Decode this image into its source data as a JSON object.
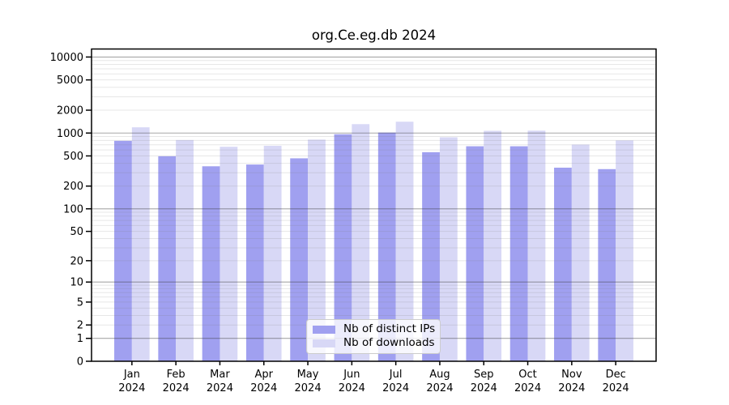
{
  "chart_data": {
    "type": "bar",
    "title": "org.Ce.eg.db 2024",
    "categories": [
      "Jan 2024",
      "Feb 2024",
      "Mar 2024",
      "Apr 2024",
      "May 2024",
      "Jun 2024",
      "Jul 2024",
      "Aug 2024",
      "Sep 2024",
      "Oct 2024",
      "Nov 2024",
      "Dec 2024"
    ],
    "category_line1": [
      "Jan",
      "Feb",
      "Mar",
      "Apr",
      "May",
      "Jun",
      "Jul",
      "Aug",
      "Sep",
      "Oct",
      "Nov",
      "Dec"
    ],
    "category_line2": "2024",
    "series": [
      {
        "name": "Nb of distinct IPs",
        "color": "#a0a0f0",
        "values": [
          790,
          495,
          365,
          385,
          465,
          965,
          1015,
          560,
          670,
          670,
          350,
          335
        ]
      },
      {
        "name": "Nb of downloads",
        "color": "#d8d8f6",
        "values": [
          1190,
          810,
          660,
          680,
          820,
          1310,
          1410,
          880,
          1070,
          1075,
          705,
          800
        ]
      }
    ],
    "xlabel": "",
    "ylabel": "",
    "yscale": "log10(value+1)",
    "y_ticks": [
      10000,
      5000,
      2000,
      1000,
      500,
      200,
      100,
      50,
      20,
      10,
      5,
      2,
      1,
      0
    ],
    "ylim": [
      0,
      12000
    ],
    "grid": "major gray lines at powers of 10, faint minor log lines",
    "legend_position": "inside bottom-center",
    "colors": {
      "axis": "#000000",
      "major_grid": "rgba(60,60,60,0.45)",
      "minor_grid": "rgba(120,120,120,0.18)",
      "background": "#ffffff"
    }
  }
}
